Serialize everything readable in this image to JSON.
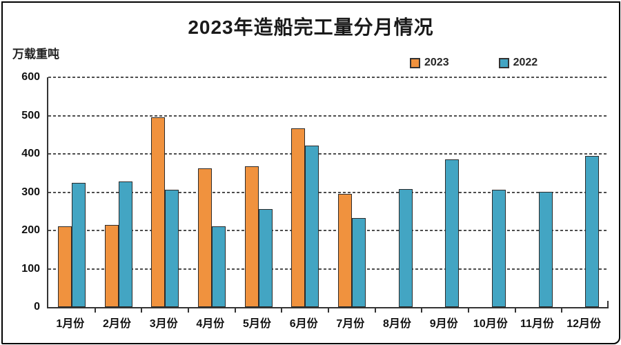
{
  "frame": {
    "background": "#FFFFFF",
    "border_color": "#000000"
  },
  "chart_data": {
    "type": "bar",
    "title": "2023年造船完工量分月情况",
    "unit_label": "万载重吨",
    "categories": [
      "1月份",
      "2月份",
      "3月份",
      "4月份",
      "5月份",
      "6月份",
      "7月份",
      "8月份",
      "9月份",
      "10月份",
      "11月份",
      "12月份"
    ],
    "series": [
      {
        "name": "2023",
        "color": "#F0923E",
        "values": [
          210,
          214,
          495,
          363,
          368,
          466,
          295,
          null,
          null,
          null,
          null,
          null
        ]
      },
      {
        "name": "2022",
        "color": "#43A5C3",
        "values": [
          325,
          328,
          306,
          210,
          256,
          421,
          233,
          308,
          386,
          306,
          301,
          394
        ]
      }
    ],
    "ylim": [
      0,
      600
    ],
    "yticks": [
      0,
      100,
      200,
      300,
      400,
      500,
      600
    ],
    "grid": "horizontal-dashed",
    "gridline_color": "#4D4D4D",
    "axis_color": "#333333",
    "bar_border_color": "#2B2B2B",
    "legend_position": "top-right",
    "legend": [
      "2023",
      "2022"
    ]
  }
}
